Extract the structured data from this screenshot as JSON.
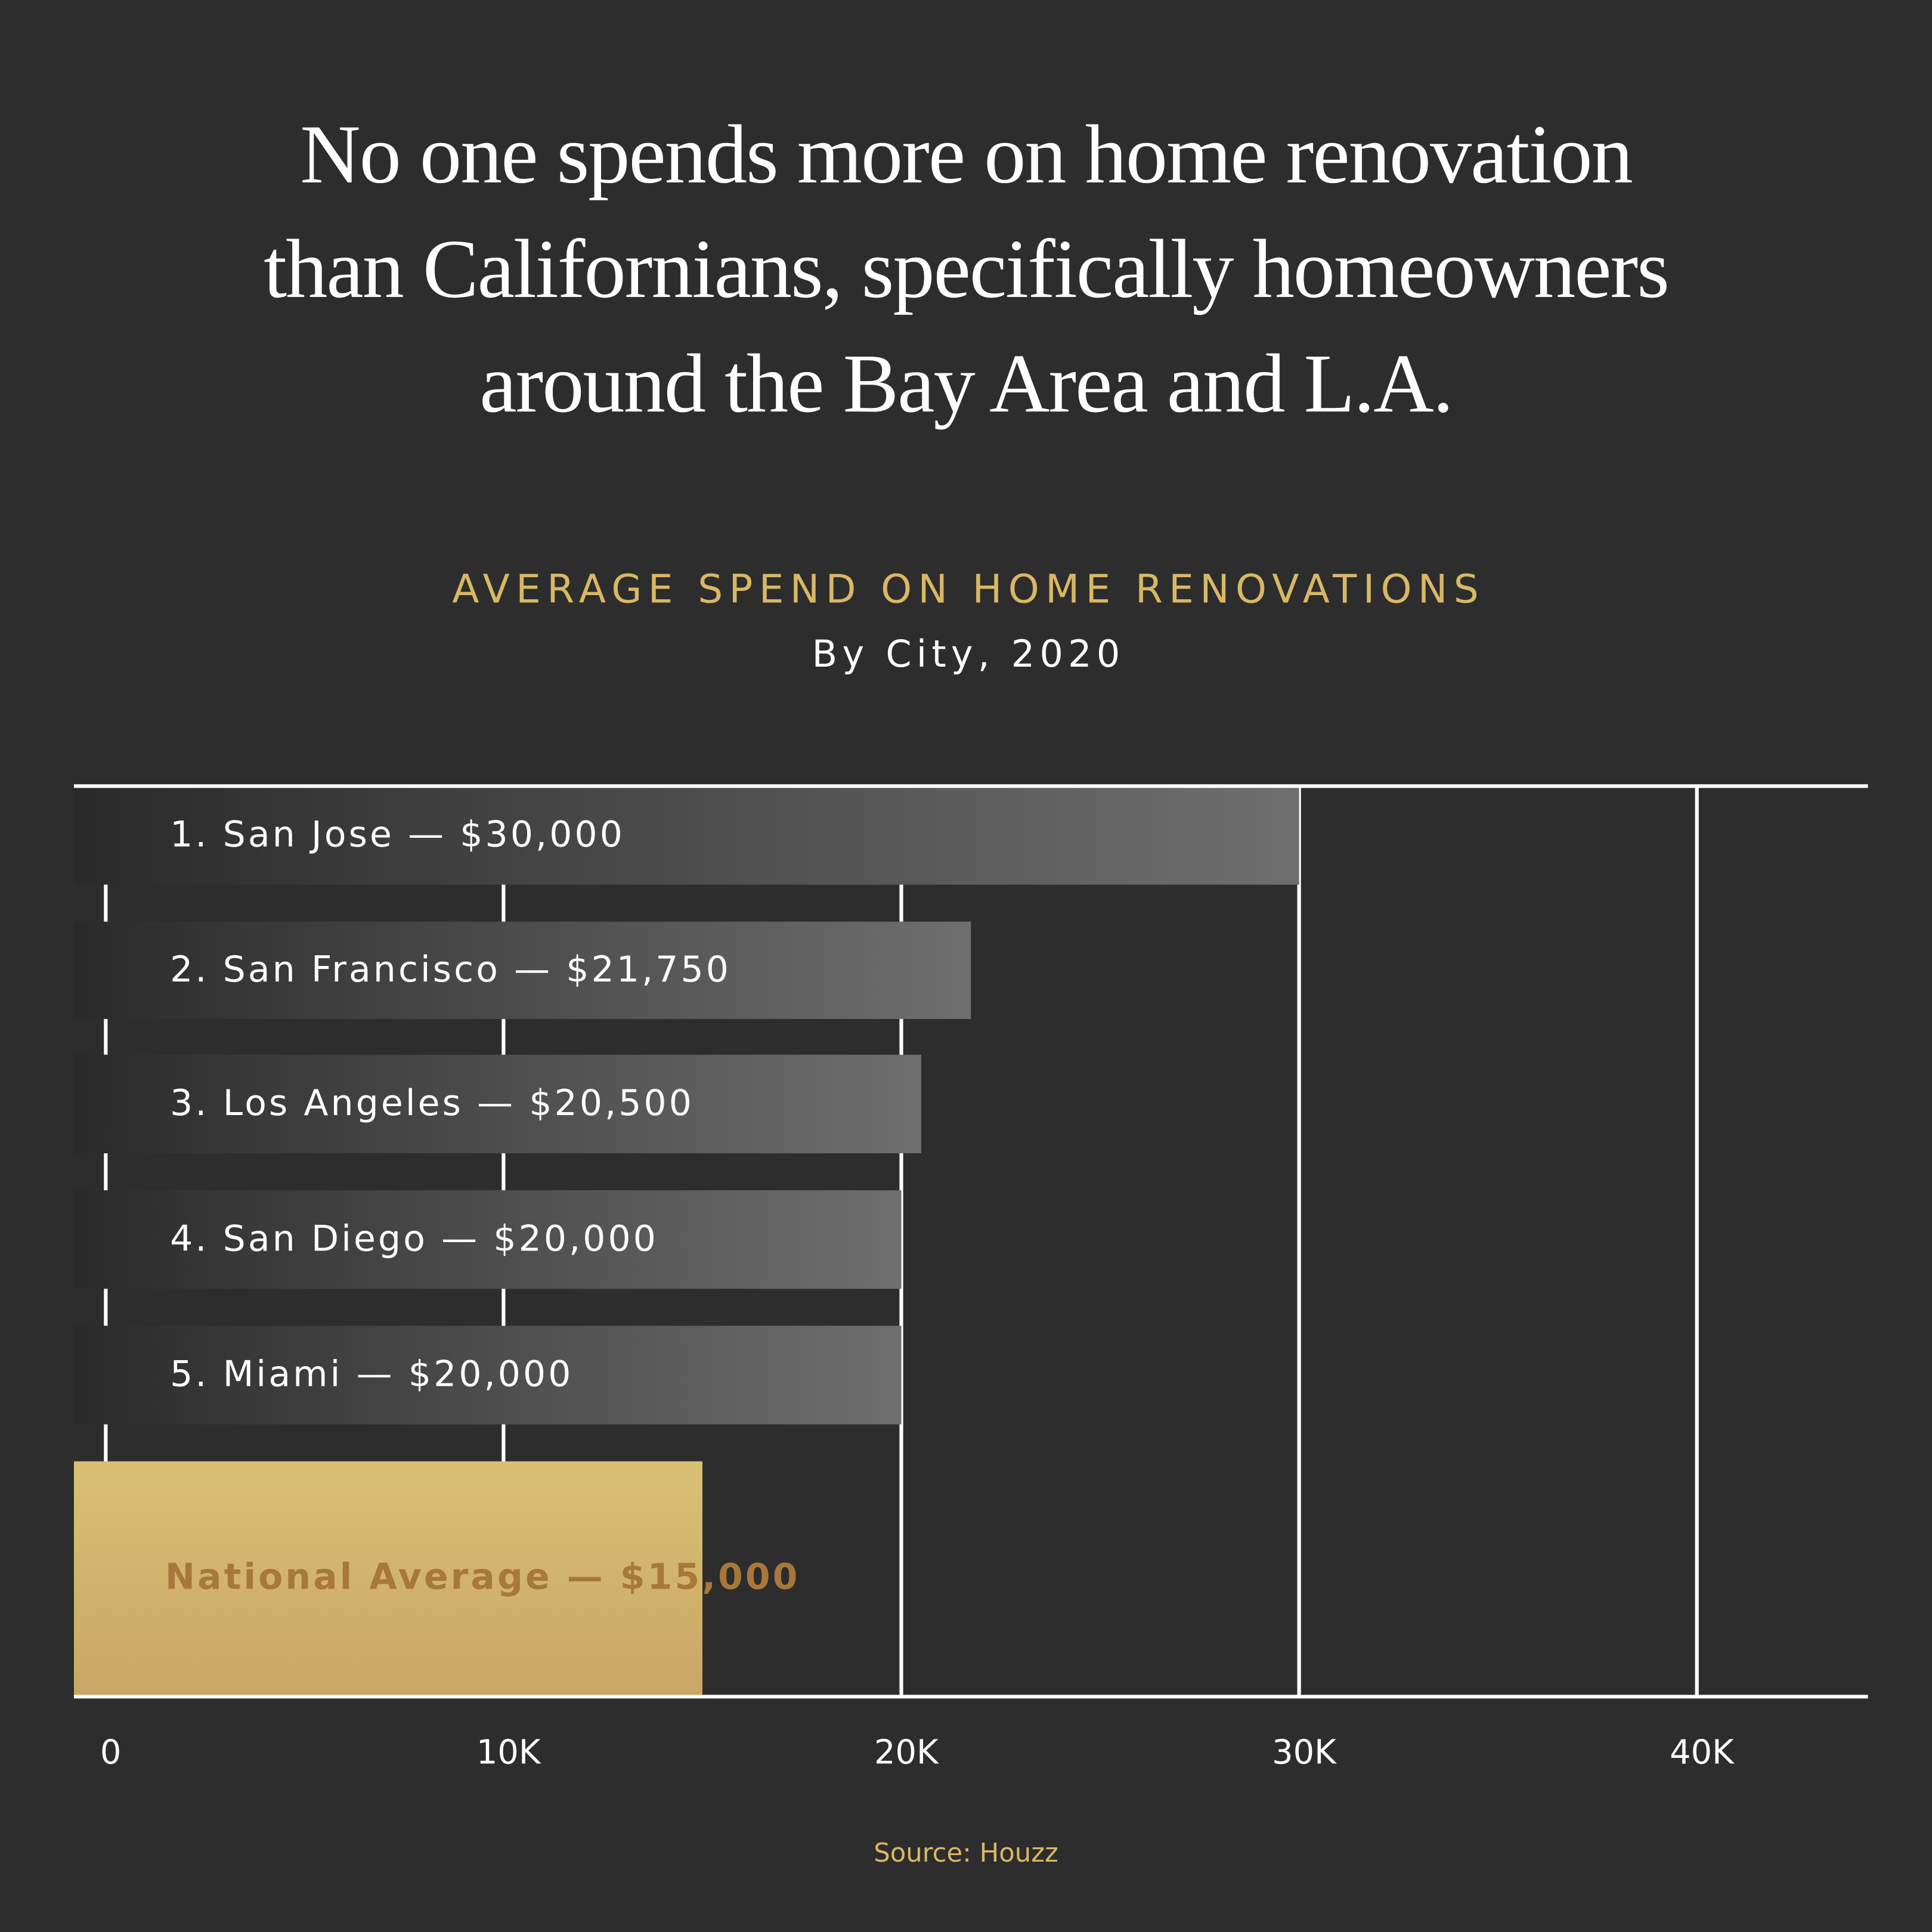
{
  "chart_data": {
    "type": "barh",
    "title": [
      "No one spends more on home renovation",
      "than Californians, specifically homeowners",
      "around the Bay Area and L.A."
    ],
    "subtitle": "AVERAGE SPEND ON HOME RENOVATIONS",
    "subtitle2": "By City, 2020",
    "source": "Source: Houzz",
    "categories": [
      "1. San Jose — $30,000",
      "2. San Francisco — $21,750",
      "3. Los Angeles — $20,500",
      "4. San Diego — $20,000",
      "5. Miami — $20,000",
      "National Average — $15,000"
    ],
    "values": [
      30000,
      21750,
      20500,
      20000,
      20000,
      15000
    ],
    "colors": [
      "#6f6f6f",
      "#6f6f6f",
      "#6f6f6f",
      "#6f6f6f",
      "#6f6f6f",
      "#d9c173"
    ],
    "label_colors": [
      "#ffffff",
      "#ffffff",
      "#ffffff",
      "#ffffff",
      "#ffffff",
      "#a8773a"
    ],
    "xlim": [
      -800,
      44300
    ],
    "xticks": [
      0,
      {
        "value": 10000,
        "label": "10K"
      },
      {
        "value": 20000,
        "label": "20K"
      },
      {
        "value": 30000,
        "label": "30K"
      },
      {
        "value": 40000,
        "label": "40K"
      }
    ],
    "grid": true
  }
}
